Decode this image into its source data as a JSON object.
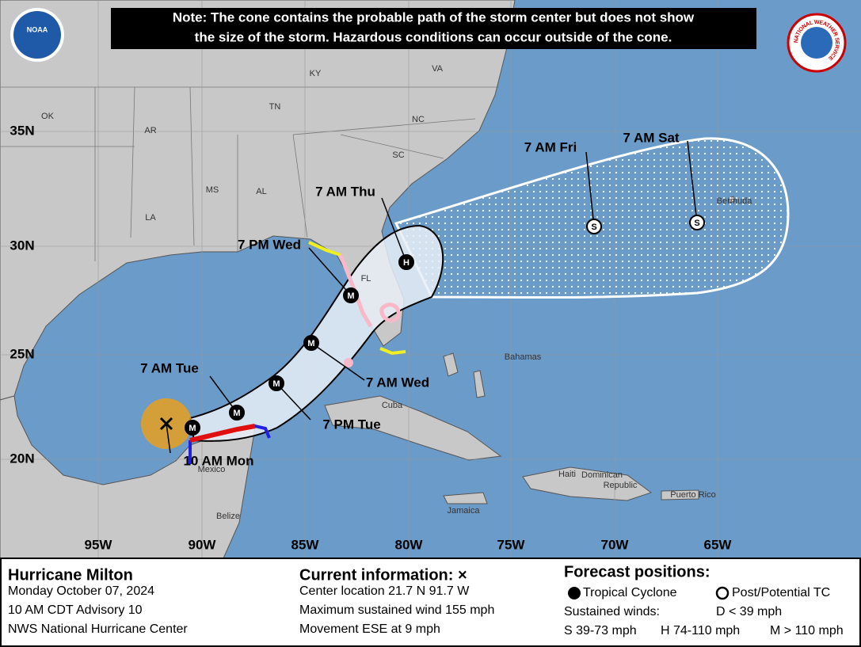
{
  "header": {
    "note": [
      "Note: The cone contains the probable path of the storm center but does not show",
      "the size of the storm. Hazardous conditions can occur outside of the cone."
    ],
    "logos": [
      "NOAA",
      "NATIONAL WEATHER SERVICE"
    ]
  },
  "map": {
    "states": [
      "OK",
      "AR",
      "MS",
      "AL",
      "LA",
      "TN",
      "KY",
      "VA",
      "NC",
      "SC",
      "FL"
    ],
    "places": [
      "Bahamas",
      "Cuba",
      "Mexico",
      "Belize",
      "Jamaica",
      "Haiti",
      "Dominican",
      "Republic",
      "Puerto Rico",
      "Bermuda"
    ],
    "latitudes": [
      "35N",
      "30N",
      "25N",
      "20N"
    ],
    "longitudes": [
      "95W",
      "90W",
      "85W",
      "80W",
      "75W",
      "70W",
      "65W"
    ],
    "forecast_labels": [
      "7 AM Sat",
      "7 AM Fri",
      "7 AM Thu",
      "7 PM Wed",
      "7 AM Wed",
      "7 PM Tue",
      "7 AM Tue",
      "10 AM Mon"
    ],
    "markers": [
      "M",
      "M",
      "M",
      "M",
      "M",
      "H",
      "S",
      "S"
    ]
  },
  "footer": {
    "storm": [
      "Hurricane Milton",
      "Monday October 07, 2024",
      "10 AM CDT Advisory 10",
      "NWS National Hurricane Center"
    ],
    "current": [
      "Current information: ×",
      "Center location 21.7 N 91.7 W",
      "Maximum sustained wind 155 mph",
      "Movement ESE at 9 mph"
    ],
    "forecast": {
      "title": "Forecast positions:",
      "tropical": "Tropical Cyclone",
      "post": "Post/Potential TC",
      "winds_title": "Sustained winds:",
      "d": "D < 39 mph",
      "s": "S 39-73 mph",
      "h": "H 74-110 mph",
      "m": "M > 110 mph"
    }
  }
}
